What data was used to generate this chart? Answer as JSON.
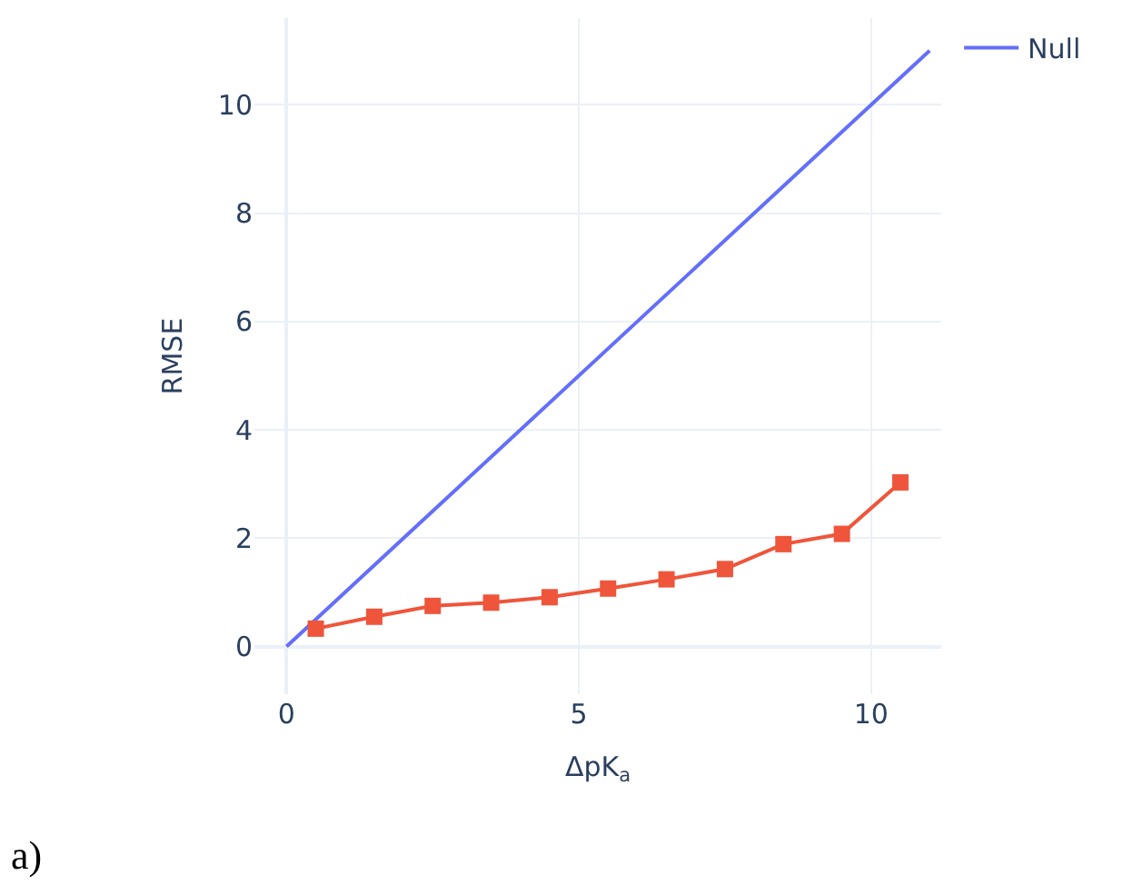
{
  "chart_data": {
    "type": "line",
    "xlabel": "ΔpK$_{a}$",
    "ylabel": "RMSE",
    "xlim": [
      -0.55,
      11.2
    ],
    "ylim": [
      -0.88,
      11.6
    ],
    "xticks": [
      0,
      5,
      10
    ],
    "yticks": [
      0,
      2,
      4,
      6,
      8,
      10
    ],
    "grid": true,
    "legend": "top right",
    "annotations": [
      "a)"
    ],
    "series": [
      {
        "name": "Null",
        "color": "#636efa",
        "x": [
          0,
          11
        ],
        "values": [
          0,
          11
        ],
        "marker": "none"
      },
      {
        "color": "#ef553b",
        "x": [
          0.5,
          1.5,
          2.5,
          3.5,
          4.5,
          5.5,
          6.5,
          7.5,
          8.5,
          9.5,
          10.5
        ],
        "values": [
          0.33,
          0.55,
          0.75,
          0.81,
          0.91,
          1.07,
          1.24,
          1.43,
          1.89,
          2.08,
          3.03
        ],
        "marker": "square"
      }
    ]
  }
}
